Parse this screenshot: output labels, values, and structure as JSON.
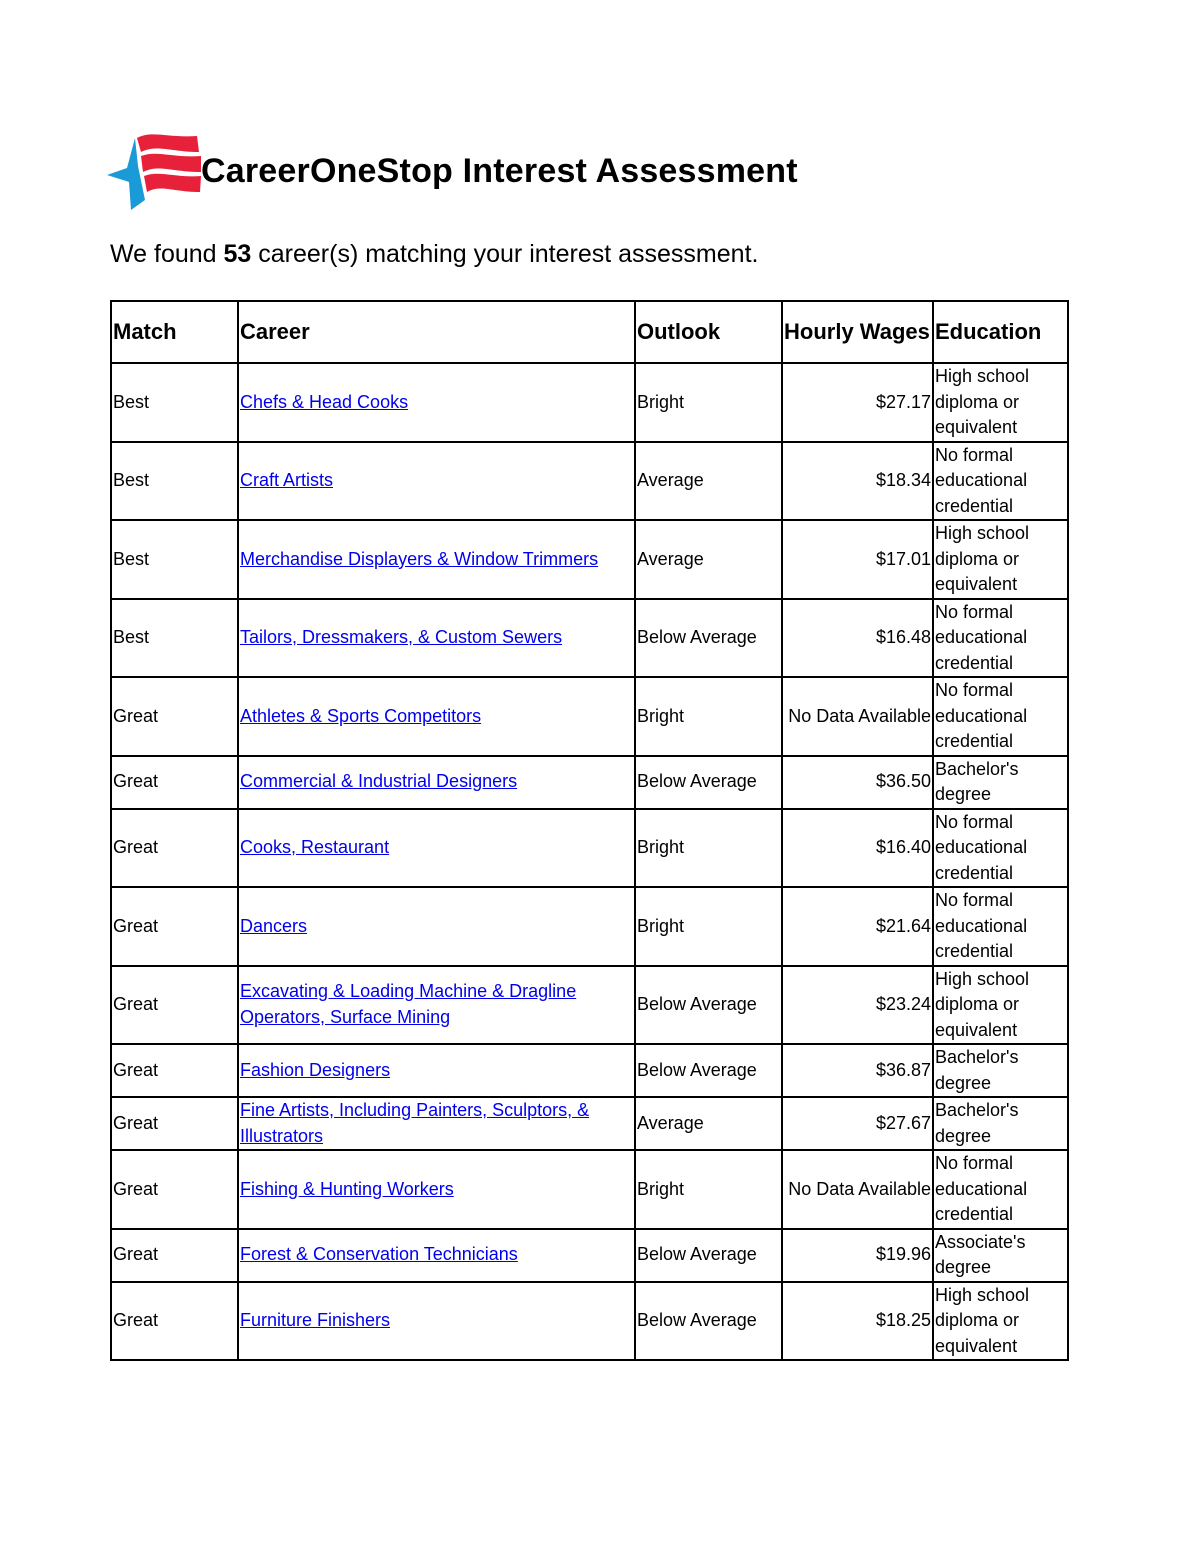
{
  "header": {
    "logo_text": "CareerOneStop",
    "title": "CareerOneStop Interest Assessment",
    "colors": {
      "flag": "#e8213a",
      "star": "#1a9ad6"
    }
  },
  "summary": {
    "prefix": "We found ",
    "count": "53",
    "suffix": " career(s) matching your interest assessment."
  },
  "table": {
    "columns": [
      "Match",
      "Career",
      "Outlook",
      "Hourly Wages",
      "Education"
    ],
    "rows": [
      {
        "match": "Best",
        "career": "Chefs & Head Cooks",
        "outlook": "Bright",
        "wage": "$27.17",
        "education": "High school diploma or equivalent"
      },
      {
        "match": "Best",
        "career": "Craft Artists",
        "outlook": "Average",
        "wage": "$18.34",
        "education": "No formal educational credential"
      },
      {
        "match": "Best",
        "career": "Merchandise Displayers & Window Trimmers",
        "outlook": "Average",
        "wage": "$17.01",
        "education": "High school diploma or equivalent"
      },
      {
        "match": "Best",
        "career": "Tailors, Dressmakers, & Custom Sewers",
        "outlook": "Below Average",
        "wage": "$16.48",
        "education": "No formal educational credential"
      },
      {
        "match": "Great",
        "career": "Athletes & Sports Competitors",
        "outlook": "Bright",
        "wage": "No Data Available",
        "education": "No formal educational credential"
      },
      {
        "match": "Great",
        "career": "Commercial & Industrial Designers",
        "outlook": "Below Average",
        "wage": "$36.50",
        "education": "Bachelor's degree"
      },
      {
        "match": "Great",
        "career": "Cooks, Restaurant",
        "outlook": "Bright",
        "wage": "$16.40",
        "education": "No formal educational credential"
      },
      {
        "match": "Great",
        "career": "Dancers",
        "outlook": "Bright",
        "wage": "$21.64",
        "education": "No formal educational credential"
      },
      {
        "match": "Great",
        "career": "Excavating & Loading Machine & Dragline Operators, Surface Mining",
        "outlook": "Below Average",
        "wage": "$23.24",
        "education": "High school diploma or equivalent"
      },
      {
        "match": "Great",
        "career": "Fashion Designers",
        "outlook": "Below Average",
        "wage": "$36.87",
        "education": "Bachelor's degree"
      },
      {
        "match": "Great",
        "career": "Fine Artists, Including Painters, Sculptors, & Illustrators",
        "outlook": "Average",
        "wage": "$27.67",
        "education": "Bachelor's degree"
      },
      {
        "match": "Great",
        "career": "Fishing & Hunting Workers",
        "outlook": "Bright",
        "wage": "No Data Available",
        "education": "No formal educational credential"
      },
      {
        "match": "Great",
        "career": "Forest & Conservation Technicians",
        "outlook": "Below Average",
        "wage": "$19.96",
        "education": "Associate's degree"
      },
      {
        "match": "Great",
        "career": "Furniture Finishers",
        "outlook": "Below Average",
        "wage": "$18.25",
        "education": "High school diploma or equivalent"
      }
    ]
  }
}
